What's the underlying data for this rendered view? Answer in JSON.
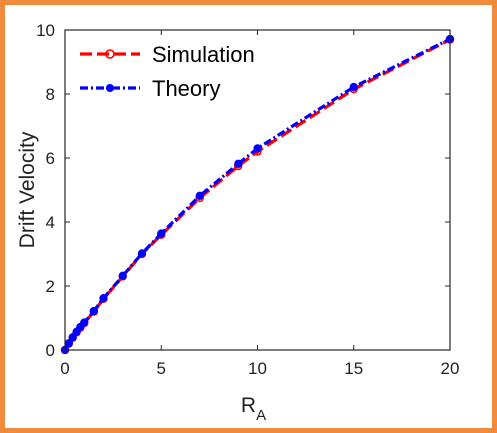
{
  "chart_data": {
    "type": "line",
    "title": "",
    "xlabel": "R",
    "xlabel_subscript": "A",
    "ylabel": "Drift Velocity",
    "xlim": [
      0,
      20
    ],
    "ylim": [
      0,
      10
    ],
    "xticks": [
      "0",
      "5",
      "10",
      "15",
      "20"
    ],
    "yticks": [
      "0",
      "2",
      "4",
      "6",
      "8",
      "10"
    ],
    "grid": false,
    "legend_position": "top-left",
    "series": [
      {
        "name": "Simulation",
        "color": "#ff0000",
        "line_style": "dashed",
        "marker": "asterisk-circle",
        "x": [
          0,
          0.2,
          0.4,
          0.6,
          0.8,
          1,
          1.5,
          2,
          3,
          4,
          5,
          7,
          9,
          10,
          15,
          20
        ],
        "y": [
          0,
          0.2,
          0.38,
          0.55,
          0.7,
          0.84,
          1.2,
          1.6,
          2.3,
          3.0,
          3.6,
          4.75,
          5.75,
          6.2,
          8.15,
          9.7
        ]
      },
      {
        "name": "Theory",
        "color": "#0000ff",
        "line_style": "dash-dot",
        "marker": "filled-circle",
        "x": [
          0,
          0.2,
          0.4,
          0.6,
          0.8,
          1,
          1.5,
          2,
          3,
          4,
          5,
          7,
          9,
          10,
          15,
          20
        ],
        "y": [
          0,
          0.21,
          0.4,
          0.57,
          0.72,
          0.86,
          1.22,
          1.62,
          2.32,
          3.02,
          3.64,
          4.82,
          5.82,
          6.3,
          8.22,
          9.72
        ]
      }
    ]
  }
}
